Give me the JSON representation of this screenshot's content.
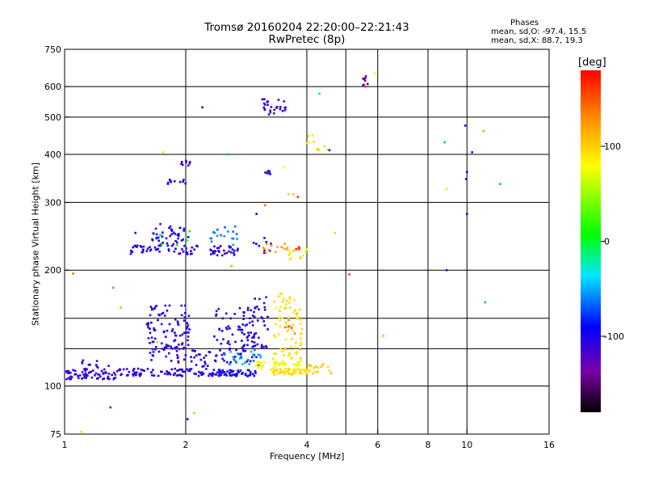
{
  "chart_data": {
    "type": "scatter",
    "title": "Tromsø 20160204 22:20:00–22:21:43",
    "subtitle": "RwPretec (8p)",
    "phases_header": "Phases",
    "phases_line1": "mean, sd,O: -97.4, 15.5",
    "phases_line2": "mean, sd,X:  88.7, 19.3",
    "xlabel": "Frequency [MHz]",
    "ylabel": "Stationary phase Virtual Height [km]",
    "x_scale": "log",
    "y_scale": "log",
    "xlim": [
      1,
      16
    ],
    "ylim": [
      75,
      750
    ],
    "x_ticks": [
      1,
      2,
      4,
      6,
      8,
      10,
      16
    ],
    "x_tick_labels": [
      "1",
      "2",
      "4",
      "6",
      "8",
      "10",
      "16"
    ],
    "x_extra_gridlines": [
      5
    ],
    "y_ticks": [
      75,
      100,
      200,
      300,
      400,
      500,
      600,
      750
    ],
    "y_tick_labels": [
      "75",
      "100",
      "200",
      "300",
      "400",
      "500",
      "600",
      "750"
    ],
    "y_extra_gridlines": [
      125,
      150
    ],
    "grid": true,
    "colorbar": {
      "label": "[deg]",
      "range": [
        -180,
        180
      ],
      "ticks": [
        100,
        0,
        -100
      ],
      "tick_labels": [
        "100",
        "0",
        "-100"
      ]
    },
    "clusters": [
      {
        "f_range": [
          1.0,
          1.35
        ],
        "h_range": [
          104,
          110
        ],
        "phase": -112,
        "count": 60
      },
      {
        "f_range": [
          1.1,
          1.3
        ],
        "h_range": [
          110,
          118
        ],
        "phase": -115,
        "count": 14
      },
      {
        "f_range": [
          1.35,
          2.5
        ],
        "h_range": [
          106,
          111
        ],
        "phase": -112,
        "count": 90
      },
      {
        "f_range": [
          1.6,
          2.05
        ],
        "h_range": [
          115,
          162
        ],
        "phase": -112,
        "count": 110
      },
      {
        "f_range": [
          2.05,
          2.3
        ],
        "h_range": [
          112,
          125
        ],
        "phase": -105,
        "count": 20
      },
      {
        "f_range": [
          2.3,
          3.0
        ],
        "h_range": [
          106,
          110
        ],
        "phase": -100,
        "count": 50
      },
      {
        "f_range": [
          2.35,
          3.0
        ],
        "h_range": [
          115,
          160
        ],
        "phase": -105,
        "count": 80
      },
      {
        "f_range": [
          2.5,
          3.1
        ],
        "h_range": [
          113,
          125
        ],
        "phase": -60,
        "count": 25
      },
      {
        "f_range": [
          2.85,
          3.2
        ],
        "h_range": [
          125,
          175
        ],
        "phase": -112,
        "count": 40
      },
      {
        "f_range": [
          3.0,
          3.5
        ],
        "h_range": [
          110,
          116
        ],
        "phase": 85,
        "count": 25
      },
      {
        "f_range": [
          3.3,
          4.1
        ],
        "h_range": [
          107,
          111
        ],
        "phase": 95,
        "count": 55
      },
      {
        "f_range": [
          3.3,
          3.9
        ],
        "h_range": [
          118,
          175
        ],
        "phase": 95,
        "count": 70
      },
      {
        "f_range": [
          3.3,
          3.9
        ],
        "h_range": [
          113,
          118
        ],
        "phase": 75,
        "count": 20
      },
      {
        "f_range": [
          3.5,
          3.75
        ],
        "h_range": [
          130,
          150
        ],
        "phase": 140,
        "count": 6
      },
      {
        "f_range": [
          4.0,
          4.6
        ],
        "h_range": [
          107,
          115
        ],
        "phase": 100,
        "count": 18
      },
      {
        "f_range": [
          1.45,
          2.15
        ],
        "h_range": [
          220,
          232
        ],
        "phase": -110,
        "count": 50
      },
      {
        "f_range": [
          1.65,
          2.05
        ],
        "h_range": [
          232,
          265
        ],
        "phase": -105,
        "count": 40
      },
      {
        "f_range": [
          1.7,
          2.05
        ],
        "h_range": [
          232,
          255
        ],
        "phase": 0,
        "count": 6
      },
      {
        "f_range": [
          2.3,
          2.7
        ],
        "h_range": [
          218,
          232
        ],
        "phase": -110,
        "count": 30
      },
      {
        "f_range": [
          2.3,
          2.7
        ],
        "h_range": [
          232,
          262
        ],
        "phase": -65,
        "count": 18
      },
      {
        "f_range": [
          2.9,
          3.3
        ],
        "h_range": [
          220,
          245
        ],
        "phase": -110,
        "count": 10
      },
      {
        "f_range": [
          3.1,
          3.6
        ],
        "h_range": [
          220,
          235
        ],
        "phase": 120,
        "count": 14
      },
      {
        "f_range": [
          3.6,
          4.0
        ],
        "h_range": [
          212,
          230
        ],
        "phase": 95,
        "count": 14
      },
      {
        "f_range": [
          3.75,
          4.0
        ],
        "h_range": [
          225,
          232
        ],
        "phase": 165,
        "count": 4
      },
      {
        "f_range": [
          1.8,
          2.0
        ],
        "h_range": [
          335,
          345
        ],
        "phase": -110,
        "count": 10
      },
      {
        "f_range": [
          1.9,
          2.05
        ],
        "h_range": [
          372,
          385
        ],
        "phase": -115,
        "count": 8
      },
      {
        "f_range": [
          3.12,
          3.25
        ],
        "h_range": [
          355,
          362
        ],
        "phase": -112,
        "count": 8
      },
      {
        "f_range": [
          3.1,
          3.55
        ],
        "h_range": [
          505,
          560
        ],
        "phase": -115,
        "count": 26
      },
      {
        "f_range": [
          4.0,
          4.5
        ],
        "h_range": [
          410,
          450
        ],
        "phase": 95,
        "count": 10
      },
      {
        "f_range": [
          5.5,
          5.8
        ],
        "h_range": [
          600,
          640
        ],
        "phase": -140,
        "count": 8
      }
    ],
    "isolated_points": [
      {
        "f": 1.3,
        "h": 88,
        "phase": -140
      },
      {
        "f": 1.38,
        "h": 160,
        "phase": 35
      },
      {
        "f": 1.5,
        "h": 250,
        "phase": -110
      },
      {
        "f": 1.7,
        "h": 130,
        "phase": 45
      },
      {
        "f": 1.76,
        "h": 405,
        "phase": 60
      },
      {
        "f": 2.02,
        "h": 82,
        "phase": -95
      },
      {
        "f": 2.1,
        "h": 85,
        "phase": 35
      },
      {
        "f": 2.2,
        "h": 530,
        "phase": -110
      },
      {
        "f": 2.55,
        "h": 400,
        "phase": -55
      },
      {
        "f": 2.6,
        "h": 205,
        "phase": 20
      },
      {
        "f": 3.0,
        "h": 280,
        "phase": -110
      },
      {
        "f": 3.15,
        "h": 295,
        "phase": 140
      },
      {
        "f": 3.5,
        "h": 370,
        "phase": 80
      },
      {
        "f": 3.6,
        "h": 315,
        "phase": 50
      },
      {
        "f": 3.7,
        "h": 315,
        "phase": 110
      },
      {
        "f": 3.8,
        "h": 310,
        "phase": 165
      },
      {
        "f": 4.3,
        "h": 575,
        "phase": -45
      },
      {
        "f": 4.55,
        "h": 410,
        "phase": -110
      },
      {
        "f": 4.7,
        "h": 250,
        "phase": 100
      },
      {
        "f": 5.1,
        "h": 195,
        "phase": 160
      },
      {
        "f": 5.9,
        "h": 650,
        "phase": 80
      },
      {
        "f": 5.6,
        "h": 600,
        "phase": 160
      },
      {
        "f": 6.2,
        "h": 135,
        "phase": 35
      },
      {
        "f": 8.8,
        "h": 430,
        "phase": -55
      },
      {
        "f": 8.9,
        "h": 325,
        "phase": 95
      },
      {
        "f": 8.9,
        "h": 200,
        "phase": -110
      },
      {
        "f": 9.9,
        "h": 475,
        "phase": -110
      },
      {
        "f": 9.95,
        "h": 345,
        "phase": -110
      },
      {
        "f": 10.0,
        "h": 360,
        "phase": -110
      },
      {
        "f": 10.0,
        "h": 280,
        "phase": -110
      },
      {
        "f": 10.3,
        "h": 405,
        "phase": -110
      },
      {
        "f": 11.0,
        "h": 460,
        "phase": 120
      },
      {
        "f": 11.1,
        "h": 165,
        "phase": -55
      },
      {
        "f": 12.1,
        "h": 335,
        "phase": -55
      },
      {
        "f": 1.32,
        "h": 180,
        "phase": 140
      },
      {
        "f": 1.05,
        "h": 196,
        "phase": 140
      },
      {
        "f": 1.02,
        "h": 108,
        "phase": -112
      },
      {
        "f": 1.05,
        "h": 110,
        "phase": -112
      },
      {
        "f": 1.1,
        "h": 76,
        "phase": 60
      }
    ]
  }
}
